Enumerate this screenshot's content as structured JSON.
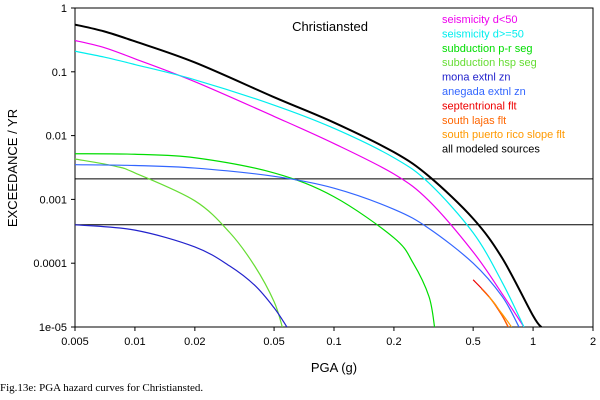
{
  "caption": "Fig.13e:  PGA hazard curves for Christiansted.",
  "chart_data": {
    "type": "line",
    "title": "Christiansted",
    "xlabel": "PGA (g)",
    "ylabel": "EXCEEDANCE / YR",
    "xscale": "log",
    "yscale": "log",
    "xlim": [
      0.005,
      2
    ],
    "ylim": [
      1e-05,
      1
    ],
    "xticks": [
      {
        "v": 0.005,
        "label": "0.005"
      },
      {
        "v": 0.01,
        "label": "0.01"
      },
      {
        "v": 0.02,
        "label": "0.02"
      },
      {
        "v": 0.05,
        "label": "0.05"
      },
      {
        "v": 0.1,
        "label": "0.1"
      },
      {
        "v": 0.2,
        "label": "0.2"
      },
      {
        "v": 0.5,
        "label": "0.5"
      },
      {
        "v": 1,
        "label": "1"
      },
      {
        "v": 2,
        "label": "2"
      }
    ],
    "yticks": [
      {
        "v": 1,
        "label": "1"
      },
      {
        "v": 0.1,
        "label": "0.1"
      },
      {
        "v": 0.01,
        "label": "0.01"
      },
      {
        "v": 0.001,
        "label": "0.001"
      },
      {
        "v": 0.0001,
        "label": "0.0001"
      },
      {
        "v": 1e-05,
        "label": "1e-05"
      }
    ],
    "hlines": [
      0.0021,
      0.0004
    ],
    "legend_position": "top-right",
    "series": [
      {
        "name": "seismicity d<50",
        "color": "#ee00ee",
        "points": [
          [
            0.005,
            0.31
          ],
          [
            0.007,
            0.24
          ],
          [
            0.01,
            0.16
          ],
          [
            0.02,
            0.07
          ],
          [
            0.05,
            0.02
          ],
          [
            0.1,
            0.0075
          ],
          [
            0.2,
            0.0025
          ],
          [
            0.3,
            0.00095
          ],
          [
            0.5,
            0.00015
          ],
          [
            0.7,
            3.3e-05
          ],
          [
            0.9,
            1e-05
          ]
        ]
      },
      {
        "name": "seismicity d>=50",
        "color": "#00eeee",
        "points": [
          [
            0.005,
            0.21
          ],
          [
            0.007,
            0.17
          ],
          [
            0.01,
            0.13
          ],
          [
            0.02,
            0.075
          ],
          [
            0.05,
            0.03
          ],
          [
            0.1,
            0.013
          ],
          [
            0.2,
            0.0045
          ],
          [
            0.3,
            0.0018
          ],
          [
            0.5,
            0.0003
          ],
          [
            0.7,
            5e-05
          ],
          [
            0.9,
            1e-05
          ]
        ]
      },
      {
        "name": "subduction p-r seg",
        "color": "#00dd00",
        "points": [
          [
            0.005,
            0.0052
          ],
          [
            0.01,
            0.0051
          ],
          [
            0.02,
            0.0045
          ],
          [
            0.05,
            0.0026
          ],
          [
            0.1,
            0.0011
          ],
          [
            0.2,
            0.00025
          ],
          [
            0.25,
            0.0001
          ],
          [
            0.3,
            3e-05
          ],
          [
            0.32,
            1e-05
          ]
        ]
      },
      {
        "name": "subduction hsp seg",
        "color": "#66dd33",
        "points": [
          [
            0.005,
            0.0043
          ],
          [
            0.008,
            0.0033
          ],
          [
            0.01,
            0.0026
          ],
          [
            0.02,
            0.00095
          ],
          [
            0.03,
            0.0003
          ],
          [
            0.04,
            9e-05
          ],
          [
            0.05,
            2.5e-05
          ],
          [
            0.055,
            1e-05
          ]
        ]
      },
      {
        "name": "mona extnl zn",
        "color": "#2222cc",
        "points": [
          [
            0.005,
            0.0004
          ],
          [
            0.01,
            0.00033
          ],
          [
            0.02,
            0.00018
          ],
          [
            0.03,
            9e-05
          ],
          [
            0.04,
            4.5e-05
          ],
          [
            0.05,
            2e-05
          ],
          [
            0.058,
            1e-05
          ]
        ]
      },
      {
        "name": "anegada extnl zn",
        "color": "#3366ff",
        "points": [
          [
            0.005,
            0.0035
          ],
          [
            0.01,
            0.0034
          ],
          [
            0.02,
            0.0031
          ],
          [
            0.05,
            0.0023
          ],
          [
            0.1,
            0.0015
          ],
          [
            0.2,
            0.0007
          ],
          [
            0.3,
            0.00035
          ],
          [
            0.5,
            0.0001
          ],
          [
            0.7,
            3e-05
          ],
          [
            0.85,
            1e-05
          ]
        ]
      },
      {
        "name": "septentrional flt",
        "color": "#ee0000",
        "points": [
          [
            0.5,
            5.5e-05
          ],
          [
            0.6,
            3e-05
          ],
          [
            0.7,
            1.5e-05
          ],
          [
            0.75,
            1e-05
          ]
        ]
      },
      {
        "name": "south lajas flt",
        "color": "#ff6600",
        "points": [
          [
            0.55,
            4e-05
          ],
          [
            0.65,
            2.2e-05
          ],
          [
            0.75,
            1e-05
          ]
        ]
      },
      {
        "name": "south puerto rico slope flt",
        "color": "#ff9900",
        "points": [
          [
            0.6,
            3e-05
          ],
          [
            0.7,
            1.6e-05
          ],
          [
            0.78,
            1e-05
          ]
        ]
      },
      {
        "name": "all modeled sources",
        "color": "#000000",
        "points": [
          [
            0.005,
            0.55
          ],
          [
            0.007,
            0.43
          ],
          [
            0.01,
            0.3
          ],
          [
            0.02,
            0.14
          ],
          [
            0.05,
            0.04
          ],
          [
            0.1,
            0.016
          ],
          [
            0.2,
            0.0055
          ],
          [
            0.3,
            0.0023
          ],
          [
            0.5,
            0.0005
          ],
          [
            0.7,
            0.00012
          ],
          [
            1,
            1.5e-05
          ],
          [
            1.1,
            1e-05
          ]
        ]
      }
    ]
  }
}
